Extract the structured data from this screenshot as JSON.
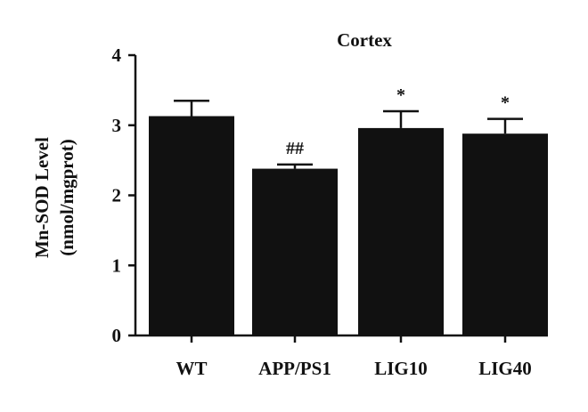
{
  "chart_data": {
    "type": "bar",
    "title": "Cortex",
    "ylabel_line1": "Mn-SOD Level",
    "ylabel_line2": "(nmol/mgprot)",
    "xlabel": "",
    "categories": [
      "WT",
      "APP/PS1",
      "LIG10",
      "LIG40"
    ],
    "values": [
      3.13,
      2.38,
      2.96,
      2.88
    ],
    "errors": [
      0.22,
      0.06,
      0.24,
      0.21
    ],
    "annotations": [
      "",
      "##",
      "*",
      "*"
    ],
    "ylim": [
      0,
      4
    ],
    "yticks": [
      0,
      1,
      2,
      3,
      4
    ],
    "grid": false,
    "bar_color": "#111111"
  }
}
